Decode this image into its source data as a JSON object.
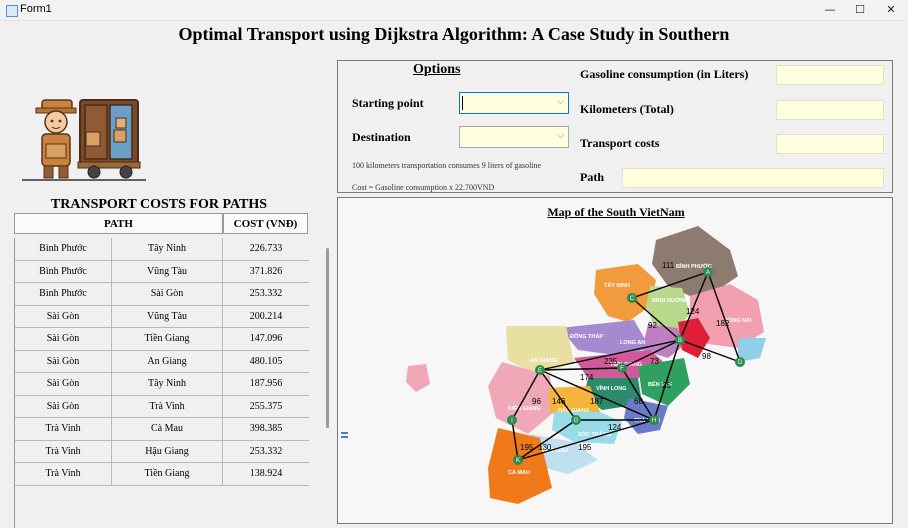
{
  "window": {
    "title": "Form1",
    "minimize": "—",
    "maximize": "☐",
    "close": "✕"
  },
  "heading": "Optimal Transport using Dijkstra Algorithm: A Case Study in Southern",
  "table": {
    "title": "TRANSPORT COSTS FOR PATHS",
    "col_path": "PATH",
    "col_cost": "COST (VNĐ)",
    "rows": [
      {
        "from": "Bình Phước",
        "to": "Tây Ninh",
        "cost": "226.733"
      },
      {
        "from": "Bình Phước",
        "to": "Vũng Tàu",
        "cost": "371.826"
      },
      {
        "from": "Bình Phước",
        "to": "Sài Gòn",
        "cost": "253.332"
      },
      {
        "from": "Sài Gòn",
        "to": "Vũng Tàu",
        "cost": "200.214"
      },
      {
        "from": "Sài Gòn",
        "to": "Tiền Giang",
        "cost": "147.096"
      },
      {
        "from": "Sài Gòn",
        "to": "An Giang",
        "cost": "480.105"
      },
      {
        "from": "Sài Gòn",
        "to": "Tây Ninh",
        "cost": "187.956"
      },
      {
        "from": "Sài Gòn",
        "to": "Trà Vinh",
        "cost": "255.375"
      },
      {
        "from": "Trà Vinh",
        "to": "Cà Mau",
        "cost": "398.385"
      },
      {
        "from": "Trà Vinh",
        "to": "Hậu Giang",
        "cost": "253.332"
      },
      {
        "from": "Trà Vinh",
        "to": "Tiền Giang",
        "cost": "138.924"
      }
    ]
  },
  "options": {
    "title": "Options",
    "starting_point_label": "Starting point",
    "destination_label": "Destination",
    "starting_point_value": "",
    "destination_value": "",
    "note1": "100 kilometers transportation consumes 9 liters of gasoline",
    "note2": "Cost = Gasoline consumption x 22.700VND",
    "gasoline_label": "Gasoline consumption (in Liters)",
    "km_label": "Kilometers (Total)",
    "costs_label": "Transport costs",
    "path_label": "Path",
    "gasoline_value": "",
    "km_value": "",
    "costs_value": "",
    "path_value": ""
  },
  "map": {
    "title": "Map of the South VietNam",
    "edge_labels": [
      "111",
      "124",
      "92",
      "182",
      "98",
      "235",
      "73",
      "174",
      "25",
      "96",
      "146",
      "187",
      "68",
      "124",
      "195",
      "130",
      "195"
    ],
    "region_labels": [
      "BÌNH PHƯỚC",
      "TÂY NINH",
      "BÌNH DƯƠNG",
      "ĐỒNG NAI",
      "LONG AN",
      "ĐỒNG THÁP",
      "AN GIANG",
      "TIỀN GIANG",
      "BẾN TRE",
      "VĨNH LONG",
      "KIÊN GIANG",
      "HẬU GIANG",
      "SÓC TRĂNG",
      "BẠC LIÊU",
      "CÀ MAU",
      "TRÀ VINH"
    ],
    "node_letters": [
      "A",
      "B",
      "C",
      "D",
      "E",
      "F",
      "G",
      "H",
      "I",
      "K"
    ]
  }
}
